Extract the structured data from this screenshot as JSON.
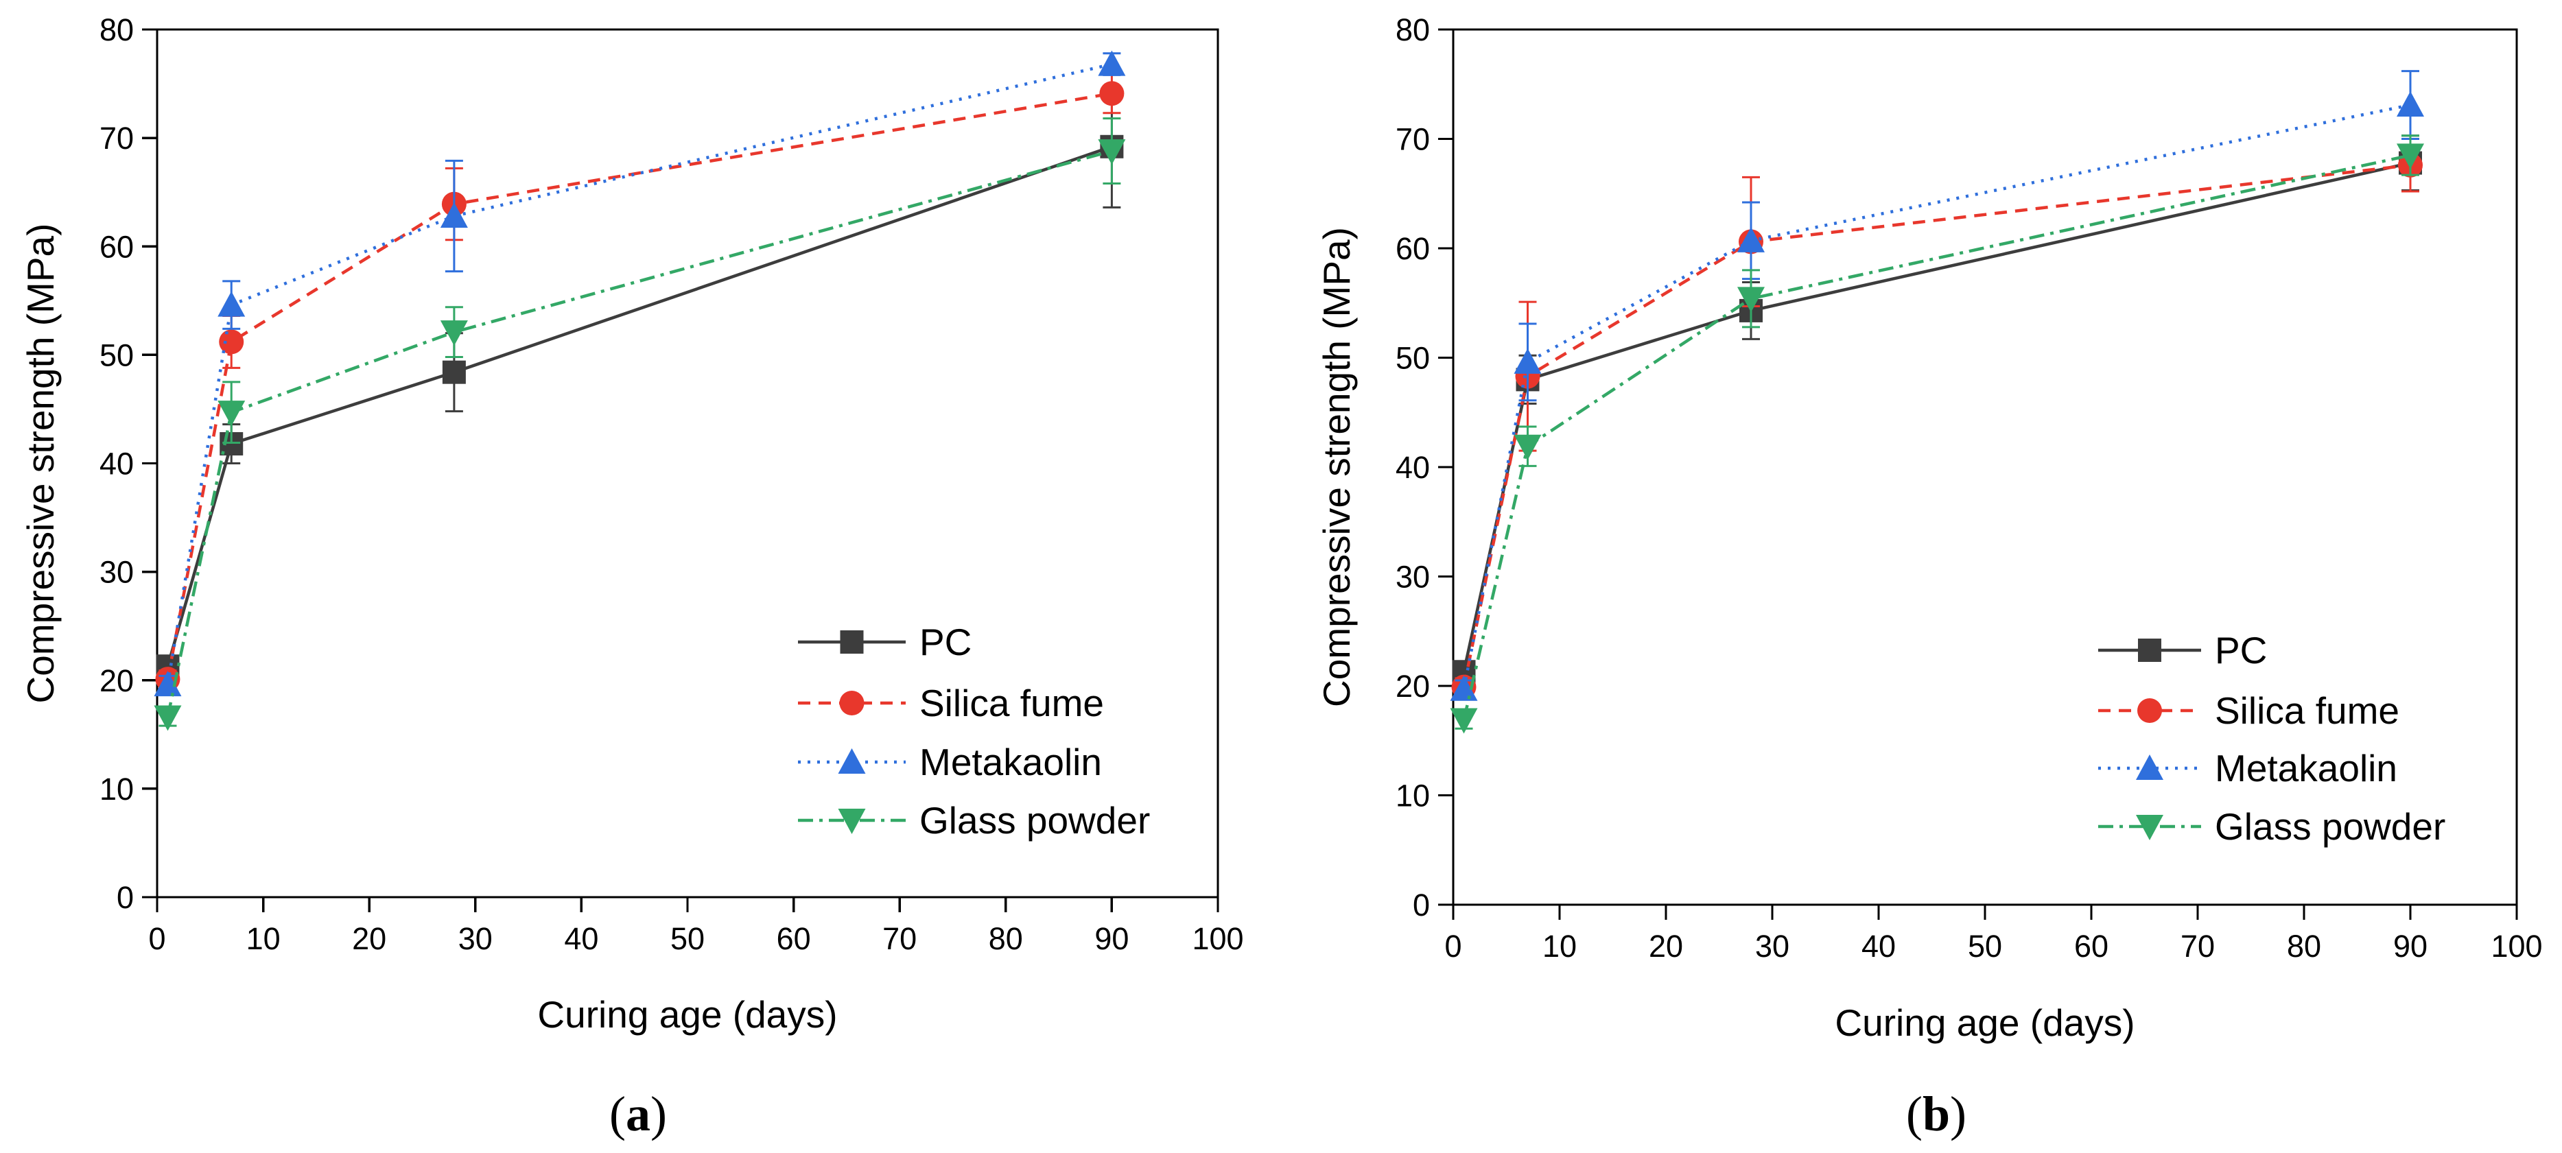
{
  "figure": {
    "colors": {
      "PC": "#3d3d3d",
      "Silica fume": "#e8372c",
      "Metakaolin": "#2f6fdc",
      "Glass powder": "#33a866"
    },
    "markers": {
      "PC": "square",
      "Silica fume": "circle",
      "Metakaolin": "triangle-up",
      "Glass powder": "triangle-down"
    },
    "dashes": {
      "PC": "solid",
      "Silica fume": "dashed",
      "Metakaolin": "dotted",
      "Glass powder": "dash-dot"
    }
  },
  "chart_data": [
    {
      "type": "line",
      "caption_open": "(",
      "caption_letter": "a",
      "caption_close": ")",
      "xlabel": "Curing age (days)",
      "ylabel": "Compressive strength (MPa)",
      "xlim": [
        0,
        100
      ],
      "ylim": [
        0,
        80
      ],
      "xticks": [
        0,
        10,
        20,
        30,
        40,
        50,
        60,
        70,
        80,
        90,
        100
      ],
      "yticks": [
        0,
        10,
        20,
        30,
        40,
        50,
        60,
        70,
        80
      ],
      "grid": false,
      "legend_position": "bottom-right",
      "x": [
        1,
        7,
        28,
        90
      ],
      "series": [
        {
          "name": "PC",
          "values": [
            21.3,
            41.8,
            48.4,
            69.2
          ],
          "error": [
            0.8,
            1.8,
            3.6,
            5.6
          ]
        },
        {
          "name": "Silica fume",
          "values": [
            20.1,
            51.2,
            63.9,
            74.1
          ],
          "error": [
            0.8,
            2.4,
            3.3,
            1.8
          ]
        },
        {
          "name": "Metakaolin",
          "values": [
            19.6,
            54.6,
            62.8,
            76.8
          ],
          "error": [
            0.8,
            2.2,
            5.1,
            1.0
          ]
        },
        {
          "name": "Glass powder",
          "values": [
            16.6,
            44.7,
            52.1,
            68.8
          ],
          "error": [
            0.8,
            2.8,
            2.3,
            3.0
          ]
        }
      ]
    },
    {
      "type": "line",
      "caption_open": "(",
      "caption_letter": "b",
      "caption_close": ")",
      "xlabel": "Curing age (days)",
      "ylabel": "Compressive strength (MPa)",
      "xlim": [
        0,
        100
      ],
      "ylim": [
        0,
        80
      ],
      "xticks": [
        0,
        10,
        20,
        30,
        40,
        50,
        60,
        70,
        80,
        90,
        100
      ],
      "yticks": [
        0,
        10,
        20,
        30,
        40,
        50,
        60,
        70,
        80
      ],
      "grid": false,
      "legend_position": "bottom-right",
      "x": [
        1,
        7,
        28,
        90
      ],
      "series": [
        {
          "name": "PC",
          "values": [
            21.3,
            48.0,
            54.3,
            67.8
          ],
          "error": [
            0.8,
            2.2,
            2.6,
            2.5
          ]
        },
        {
          "name": "Silica fume",
          "values": [
            19.9,
            48.3,
            60.6,
            67.6
          ],
          "error": [
            0.8,
            6.8,
            5.9,
            2.4
          ]
        },
        {
          "name": "Metakaolin",
          "values": [
            19.7,
            49.6,
            60.7,
            73.1
          ],
          "error": [
            0.8,
            3.5,
            3.5,
            3.1
          ]
        },
        {
          "name": "Glass powder",
          "values": [
            16.9,
            41.9,
            55.4,
            68.5
          ],
          "error": [
            0.8,
            1.8,
            2.6,
            1.8
          ]
        }
      ]
    }
  ]
}
